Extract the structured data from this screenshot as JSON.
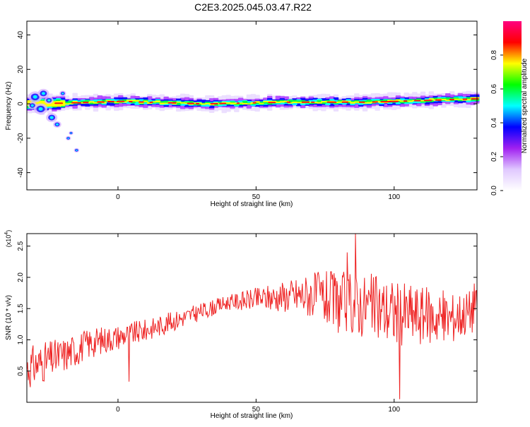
{
  "title": "C2E3.2025.045.03.47.R22",
  "chart_data": [
    {
      "type": "heatmap",
      "xlabel": "Height of straight line (km)",
      "ylabel": "Frequency (Hz)",
      "xlim": [
        -33,
        130
      ],
      "ylim": [
        -50,
        48
      ],
      "xticks": [
        0,
        50,
        100
      ],
      "yticks": [
        -40,
        -20,
        0,
        20,
        40
      ],
      "colorbar": {
        "label": "Normalized spectral amplitude",
        "range": [
          0,
          1
        ],
        "ticks": [
          0.0,
          0.2,
          0.4,
          0.6,
          0.8
        ],
        "colors": [
          "#ffffff",
          "#e0c8ff",
          "#a020f0",
          "#0000ff",
          "#00ffff",
          "#00ff00",
          "#ffff00",
          "#ff0000",
          "#ff0080"
        ]
      },
      "ridge_frequency_hz": [
        {
          "x": -33,
          "y": 0
        },
        {
          "x": -20,
          "y": 0.5
        },
        {
          "x": 0,
          "y": 1.5
        },
        {
          "x": 30,
          "y": 0
        },
        {
          "x": 60,
          "y": 1
        },
        {
          "x": 90,
          "y": 1
        },
        {
          "x": 130,
          "y": 3
        }
      ]
    },
    {
      "type": "line",
      "xlabel": "Height of straight line (km)",
      "ylabel": "SNR (10 * v/v)",
      "multiplier": "(x10",
      "multiplier_exp": "4",
      "multiplier_close": ")",
      "xlim": [
        -33,
        130
      ],
      "ylim": [
        0,
        2.7
      ],
      "xticks": [
        0,
        50,
        100
      ],
      "yticks": [
        0.5,
        1.0,
        1.5,
        2.0,
        2.5
      ],
      "color": "#ee2222",
      "envelope": {
        "x": [
          -33,
          -20,
          -10,
          0,
          10,
          20,
          30,
          40,
          50,
          60,
          70,
          80,
          90,
          100,
          110,
          120,
          130
        ],
        "y": [
          0.55,
          0.75,
          0.95,
          1.05,
          1.15,
          1.3,
          1.45,
          1.6,
          1.65,
          1.7,
          1.72,
          1.6,
          1.55,
          1.45,
          1.4,
          1.35,
          1.5
        ]
      },
      "noise_amplitude": {
        "x": [
          -33,
          0,
          40,
          60,
          80,
          100,
          130
        ],
        "y": [
          0.35,
          0.2,
          0.12,
          0.25,
          0.5,
          0.55,
          0.35
        ]
      },
      "notable_points": [
        {
          "x": 4,
          "y": 0.33
        },
        {
          "x": 86,
          "y": 2.7
        },
        {
          "x": 83,
          "y": 2.4
        },
        {
          "x": 102,
          "y": 0.05
        },
        {
          "x": 129,
          "y": 1.9
        }
      ]
    }
  ]
}
